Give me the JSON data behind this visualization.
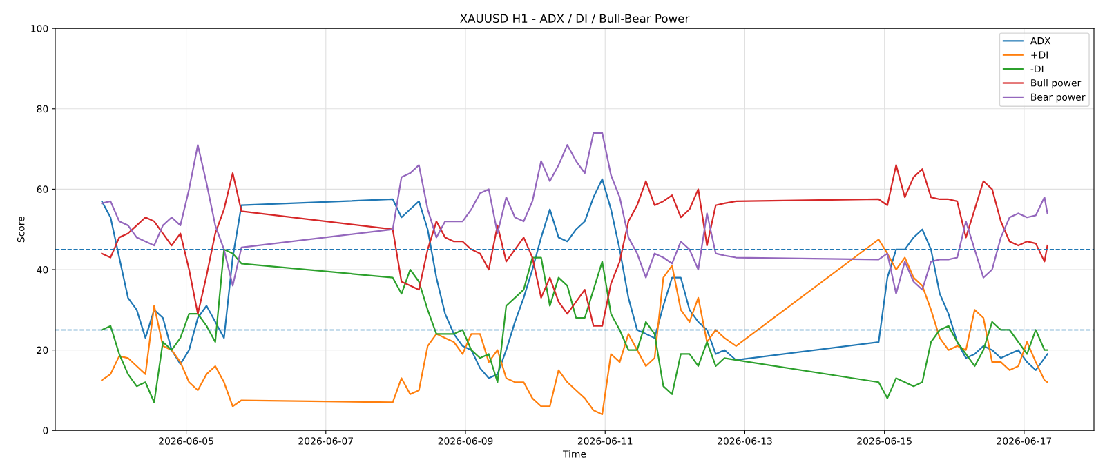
{
  "chart_data": {
    "type": "line",
    "title": "XAUUSD H1 - ADX / DI / Bull-Bear Power",
    "xlabel": "Time",
    "ylabel": "Score",
    "x": [
      "2026-06-03T19:00",
      "2026-06-03T22:00",
      "2026-06-04T01:00",
      "2026-06-04T04:00",
      "2026-06-04T07:00",
      "2026-06-04T10:00",
      "2026-06-04T13:00",
      "2026-06-04T16:00",
      "2026-06-04T19:00",
      "2026-06-04T22:00",
      "2026-06-05T01:00",
      "2026-06-05T04:00",
      "2026-06-05T07:00",
      "2026-06-05T10:00",
      "2026-06-05T13:00",
      "2026-06-05T16:00",
      "2026-06-05T19:00",
      "2026-06-07T23:00",
      "2026-06-08T02:00",
      "2026-06-08T05:00",
      "2026-06-08T08:00",
      "2026-06-08T11:00",
      "2026-06-08T14:00",
      "2026-06-08T17:00",
      "2026-06-08T20:00",
      "2026-06-08T23:00",
      "2026-06-09T02:00",
      "2026-06-09T05:00",
      "2026-06-09T08:00",
      "2026-06-09T11:00",
      "2026-06-09T14:00",
      "2026-06-09T17:00",
      "2026-06-09T20:00",
      "2026-06-09T23:00",
      "2026-06-10T02:00",
      "2026-06-10T05:00",
      "2026-06-10T08:00",
      "2026-06-10T11:00",
      "2026-06-10T14:00",
      "2026-06-10T17:00",
      "2026-06-10T20:00",
      "2026-06-10T23:00",
      "2026-06-11T02:00",
      "2026-06-11T05:00",
      "2026-06-11T08:00",
      "2026-06-11T11:00",
      "2026-06-11T14:00",
      "2026-06-11T17:00",
      "2026-06-11T20:00",
      "2026-06-11T23:00",
      "2026-06-12T02:00",
      "2026-06-12T05:00",
      "2026-06-12T08:00",
      "2026-06-12T11:00",
      "2026-06-12T14:00",
      "2026-06-12T17:00",
      "2026-06-12T21:00",
      "2026-06-14T22:00",
      "2026-06-15T01:00",
      "2026-06-15T04:00",
      "2026-06-15T07:00",
      "2026-06-15T10:00",
      "2026-06-15T13:00",
      "2026-06-15T16:00",
      "2026-06-15T19:00",
      "2026-06-15T22:00",
      "2026-06-16T01:00",
      "2026-06-16T04:00",
      "2026-06-16T07:00",
      "2026-06-16T10:00",
      "2026-06-16T13:00",
      "2026-06-16T16:00",
      "2026-06-16T19:00",
      "2026-06-16T22:00",
      "2026-06-17T01:00",
      "2026-06-17T04:00",
      "2026-06-17T07:00",
      "2026-06-17T08:00"
    ],
    "series": [
      {
        "name": "ADX",
        "color": "#1f77b4",
        "values": [
          57,
          53,
          43,
          33,
          30,
          23,
          30,
          28,
          20,
          16.5,
          20,
          28,
          31,
          27,
          23,
          43,
          56,
          57.5,
          53,
          55,
          57,
          50,
          38,
          29,
          24,
          21,
          20,
          15.5,
          13,
          14,
          20,
          27,
          33,
          40,
          48,
          55,
          48,
          47,
          50,
          52,
          58,
          62.5,
          55,
          45,
          33,
          25,
          24,
          23,
          31,
          38,
          38,
          30,
          27,
          25,
          19,
          20,
          17.5,
          22,
          38,
          45,
          45,
          48,
          50,
          45,
          34,
          29,
          22,
          18,
          19,
          21,
          20,
          18,
          19,
          20,
          17,
          15,
          18,
          19
        ]
      },
      {
        "name": "+DI",
        "color": "#ff7f0e",
        "values": [
          12.5,
          14,
          18.5,
          18,
          16,
          14,
          31,
          21,
          20,
          17,
          12,
          10,
          14,
          16,
          12,
          6,
          7.5,
          7,
          13,
          9,
          10,
          21,
          24,
          23,
          22,
          19,
          24,
          24,
          17,
          20,
          13,
          12,
          12,
          8,
          6,
          6,
          15,
          12,
          10,
          8,
          5,
          4,
          19,
          17,
          24,
          20,
          16,
          18,
          38,
          41,
          30,
          27,
          33,
          22,
          25,
          23,
          21,
          47.5,
          44,
          40,
          43,
          38,
          36,
          30,
          23,
          20,
          21,
          20,
          30,
          28,
          17,
          17,
          15,
          16,
          22,
          17,
          12.5,
          12
        ]
      },
      {
        "name": "-DI",
        "color": "#2ca02c",
        "values": [
          25,
          26,
          19,
          14,
          11,
          12,
          7,
          22,
          20,
          23,
          29,
          29,
          26,
          22,
          45,
          44,
          41.5,
          38,
          34,
          40,
          37,
          30,
          24,
          24,
          24,
          25,
          20,
          18,
          19,
          12,
          31,
          33,
          35,
          43,
          43,
          31,
          38,
          36,
          28,
          28,
          35,
          42,
          29,
          25,
          20,
          20,
          27,
          24,
          11,
          9,
          19,
          19,
          16,
          22,
          16,
          18,
          17.5,
          12,
          8,
          13,
          12,
          11,
          12,
          22,
          25,
          26,
          22,
          19,
          16,
          20,
          27,
          25,
          25,
          22,
          19,
          25,
          20,
          20
        ]
      },
      {
        "name": "Bull power",
        "color": "#d62728",
        "values": [
          44,
          43,
          48,
          49,
          51,
          53,
          52,
          49,
          46,
          49,
          40,
          29,
          38.5,
          49,
          55,
          64,
          54.5,
          50,
          37,
          36,
          35,
          45,
          52,
          48,
          47,
          47,
          45,
          44,
          40,
          51,
          42,
          45,
          48,
          43,
          33,
          38,
          32,
          29,
          32,
          35,
          26,
          26,
          36.5,
          42,
          52,
          56,
          62,
          56,
          57,
          58.5,
          53,
          55,
          60,
          46,
          56,
          56.5,
          57,
          57.5,
          56,
          66,
          58,
          63,
          65,
          58,
          57.5,
          57.5,
          57,
          48,
          55,
          62,
          60,
          52,
          47,
          46,
          47,
          46.5,
          42,
          46
        ]
      },
      {
        "name": "Bear power",
        "color": "#9467bd",
        "values": [
          56.5,
          57,
          52,
          51,
          48,
          47,
          46,
          51,
          53,
          51,
          60,
          71,
          61.5,
          51,
          45,
          36,
          45.5,
          50,
          63,
          64,
          66,
          55,
          48,
          52,
          52,
          52,
          55,
          59,
          60,
          49,
          58,
          53,
          52,
          57,
          67,
          62,
          66,
          71,
          67,
          64,
          74,
          74,
          63.5,
          58,
          48,
          44,
          38,
          44,
          43,
          41.5,
          47,
          45,
          40,
          54,
          44,
          43.5,
          43,
          42.5,
          44,
          34,
          42,
          37,
          35,
          42,
          42.5,
          42.5,
          43,
          52,
          45,
          38,
          40,
          48,
          53,
          54,
          53,
          53.5,
          58,
          54
        ]
      }
    ],
    "xlim": [
      "2026-06-03T03:00",
      "2026-06-18T00:00"
    ],
    "xticks": [
      {
        "value": "2026-06-05",
        "label": "2026-06-05"
      },
      {
        "value": "2026-06-07",
        "label": "2026-06-07"
      },
      {
        "value": "2026-06-09",
        "label": "2026-06-09"
      },
      {
        "value": "2026-06-11",
        "label": "2026-06-11"
      },
      {
        "value": "2026-06-13",
        "label": "2026-06-13"
      },
      {
        "value": "2026-06-15",
        "label": "2026-06-15"
      },
      {
        "value": "2026-06-17",
        "label": "2026-06-17"
      }
    ],
    "ylim": [
      0,
      100
    ],
    "yticks": [
      0,
      20,
      40,
      60,
      80,
      100
    ],
    "ref_lines": [
      {
        "axis": "y",
        "value": 45,
        "label": null,
        "color": "#1f77b4",
        "line_style": "dashed"
      },
      {
        "axis": "y",
        "value": 25,
        "label": null,
        "color": "#1f77b4",
        "line_style": "dashed"
      }
    ],
    "grid": true,
    "legend": "top right",
    "marker": "none",
    "line_style": "solid"
  }
}
